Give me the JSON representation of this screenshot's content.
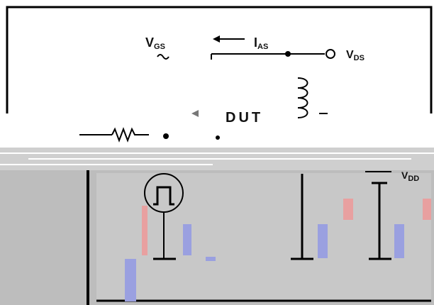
{
  "labels": {
    "vgs": {
      "symbol": "V",
      "subscript": "GS"
    },
    "ias": {
      "symbol": "I",
      "subscript": "AS"
    },
    "vds": {
      "symbol": "V",
      "subscript": "DS"
    },
    "dut": "DUT",
    "vdd": {
      "symbol": "V",
      "subscript": "DD"
    }
  }
}
